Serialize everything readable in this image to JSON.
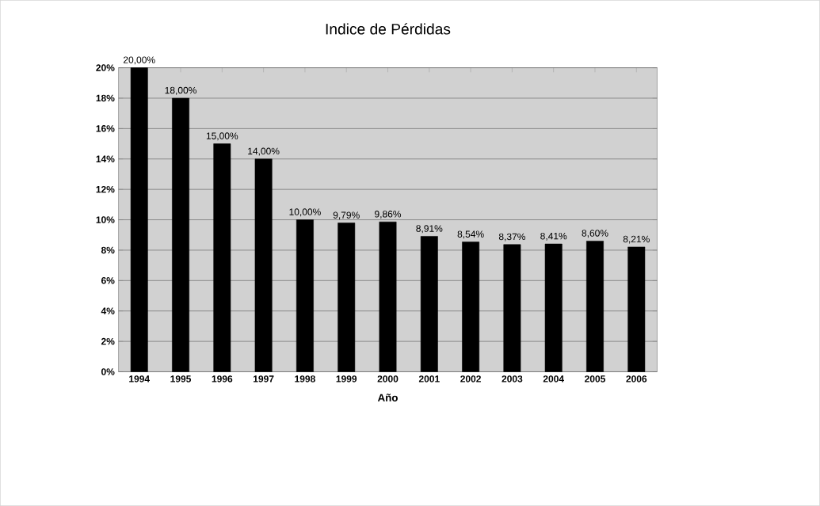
{
  "chart_data": {
    "type": "bar",
    "title": "Indice de Pérdidas",
    "xlabel": "Año",
    "categories": [
      "1994",
      "1995",
      "1996",
      "1997",
      "1998",
      "1999",
      "2000",
      "2001",
      "2002",
      "2003",
      "2004",
      "2005",
      "2006"
    ],
    "values": [
      20,
      18,
      15,
      14,
      10,
      9.79,
      9.86,
      8.91,
      8.54,
      8.37,
      8.41,
      8.6,
      8.21
    ],
    "value_labels": [
      "20,00%",
      "18,00%",
      "15,00%",
      "14,00%",
      "10,00%",
      "9,79%",
      "9,86%",
      "8,91%",
      "8,54%",
      "8,37%",
      "8,41%",
      "8,60%",
      "8,21%"
    ],
    "color": "#000000",
    "ylim": [
      0,
      20
    ],
    "yticks": [
      {
        "value": 0,
        "label": "0%"
      },
      {
        "value": 2,
        "label": "2%"
      },
      {
        "value": 4,
        "label": "4%"
      },
      {
        "value": 6,
        "label": "6%"
      },
      {
        "value": 8,
        "label": "8%"
      },
      {
        "value": 10,
        "label": "10%"
      },
      {
        "value": 12,
        "label": "12%"
      },
      {
        "value": 14,
        "label": "14%"
      },
      {
        "value": 16,
        "label": "16%"
      },
      {
        "value": 18,
        "label": "18%"
      },
      {
        "value": 20,
        "label": "20%"
      }
    ],
    "grid": "y"
  }
}
